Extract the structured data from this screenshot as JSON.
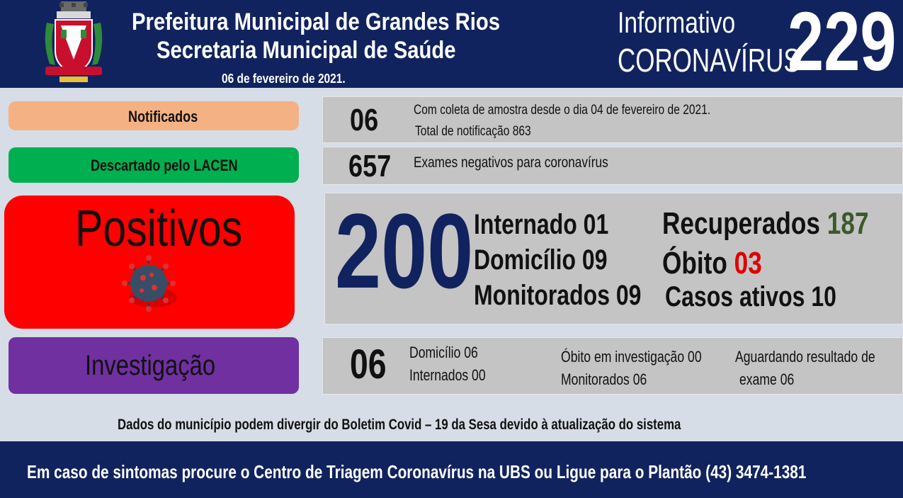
{
  "header": {
    "title_line1": "Prefeitura Municipal de Grandes Rios",
    "title_line2": "Secretaria Municipal de Saúde",
    "date": "06 de fevereiro  de 2021.",
    "info_label1": "Informativo",
    "info_label2": "CORONAVÍRUS",
    "bulletin_number": "229",
    "crest_icon": "municipal-crest-icon"
  },
  "notificados": {
    "label": "Notificados",
    "count": "06",
    "line1": "Com coleta de amostra desde o dia 04 de fevereiro  de 2021.",
    "line2": "Total de notificação  863",
    "color": "#f4b183"
  },
  "descartado": {
    "label": "Descartado  pelo LACEN",
    "count": "657",
    "text": "Exames negativos  para coronavírus",
    "color": "#00b050"
  },
  "positivos": {
    "label": "Positivos",
    "count": "200",
    "internado": "Internado 01",
    "domicilio": "Domicílio 09",
    "monitorados": "Monitorados 09",
    "recuperados_label": "Recuperados",
    "recuperados_value": "187",
    "obito_label": "Óbito",
    "obito_value": "03",
    "casos_ativos": "Casos ativos 10",
    "virus_icon": "coronavirus-icon",
    "color": "#ff0000",
    "count_color": "#11235e",
    "recuperados_color": "#3a5a2a",
    "obito_color": "#e00000"
  },
  "investigacao": {
    "label": "Investigação",
    "count": "06",
    "domicilio": "Domicílio 06",
    "internados": "Internados 00",
    "obito": "Óbito  em investigação  00",
    "monitorados": "Monitorados 06",
    "aguardando1": "Aguardando resultado de",
    "aguardando2": "exame 06",
    "color": "#7030a0"
  },
  "notice": "Dados do município  podem  divergir  do Boletim  Covid – 19 da Sesa devido à atualização  do sistema",
  "footer": {
    "text": "Em caso de sintomas  procure  o Centro de Triagem  Coronavírus  na UBS ou Ligue para o Plantão  (43) 3474-1381"
  }
}
